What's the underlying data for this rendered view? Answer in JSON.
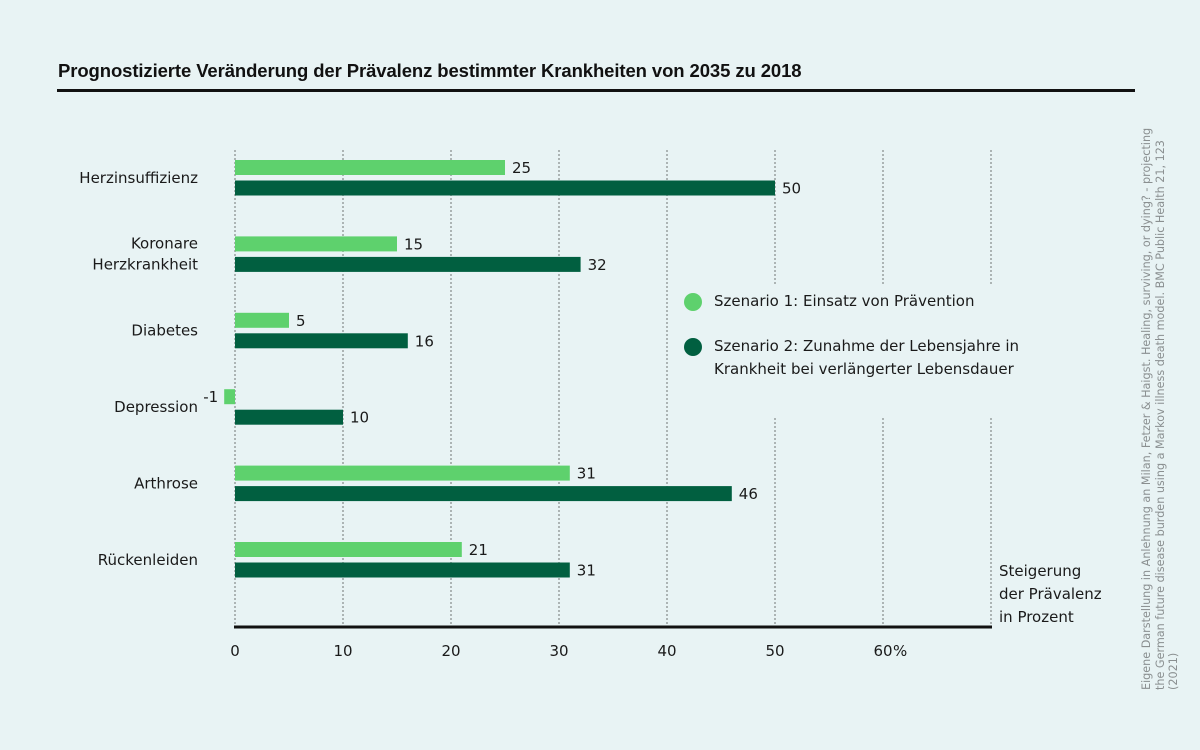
{
  "title": "Prognostizierte Veränderung der Prävalenz bestimmter Krankheiten von 2035 zu 2018",
  "source_note": "Eigene Darstellung in Anlehnung an Milan, Fetzer & Haigst. Healing, surviving, or dying? - projecting the German future disease burden using a Markov illness death model. BMC Public Health 21, 123 (2021)",
  "colors": {
    "background": "#e8f3f4",
    "scenario1": "#5ed16d",
    "scenario2": "#015f40",
    "text": "#1a1a1a"
  },
  "legend": [
    {
      "label": "Szenario 1: Einsatz von Prävention",
      "color": "#5ed16d"
    },
    {
      "label": "Szenario 2: Zunahme der Lebensjahre in Krankheit bei verlängerter Lebensdauer",
      "color": "#015f40"
    }
  ],
  "chart_data": {
    "type": "bar",
    "orientation": "horizontal",
    "title": "Prognostizierte Veränderung der Prävalenz bestimmter Krankheiten von 2035 zu 2018",
    "categories": [
      "Herzinsuffizienz",
      "Koronare Herzkrankheit",
      "Diabetes",
      "Depression",
      "Arthrose",
      "Rückenleiden"
    ],
    "category_lines": [
      [
        "Herzinsuffizienz"
      ],
      [
        "Koronare",
        "Herzkrankheit"
      ],
      [
        "Diabetes"
      ],
      [
        "Depression"
      ],
      [
        "Arthrose"
      ],
      [
        "Rückenleiden"
      ]
    ],
    "series": [
      {
        "name": "Szenario 1: Einsatz von Prävention",
        "values": [
          25,
          15,
          5,
          -1,
          31,
          21
        ]
      },
      {
        "name": "Szenario 2: Zunahme der Lebensjahre in Krankheit bei verlängerter Lebensdauer",
        "values": [
          50,
          32,
          16,
          10,
          46,
          31
        ]
      }
    ],
    "xlabel": "Steigerung der Prävalenz in Prozent",
    "xlabel_lines": [
      "Steigerung",
      "der Prävalenz",
      "in Prozent"
    ],
    "xunit": "%",
    "xticks": [
      0,
      10,
      20,
      30,
      40,
      50,
      60
    ],
    "xlim": [
      0,
      70
    ],
    "grid": true,
    "legend_position": "right"
  }
}
